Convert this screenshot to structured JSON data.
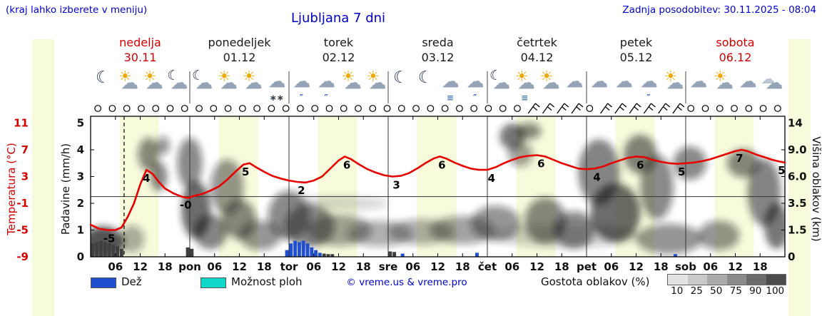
{
  "header": {
    "hint": "(kraj lahko izberete v meniju)",
    "title": "Ljubljana 7 dni",
    "last_update": "Zadnja posodobitev: 30.11.2025 - 08:04"
  },
  "days": [
    {
      "name": "nedelja",
      "date": "30.11",
      "highlight": true
    },
    {
      "name": "ponedeljek",
      "date": "01.12",
      "highlight": false
    },
    {
      "name": "torek",
      "date": "02.12",
      "highlight": false
    },
    {
      "name": "sreda",
      "date": "03.12",
      "highlight": false
    },
    {
      "name": "četrtek",
      "date": "04.12",
      "highlight": false
    },
    {
      "name": "petek",
      "date": "05.12",
      "highlight": false
    },
    {
      "name": "sobota",
      "date": "06.12",
      "highlight": true
    }
  ],
  "axes": {
    "temperature_label": "Temperatura (°C)",
    "temperature_ticks": [
      "11",
      "7",
      "3",
      "-1",
      "-5",
      "-9"
    ],
    "precip_label": "Padavine (mm/h)",
    "precip_ticks": [
      "5",
      "4",
      "3",
      "2",
      "1",
      "0"
    ],
    "cloud_label": "Višina oblakov (km)",
    "cloud_ticks": [
      "14",
      "9.0",
      "6.0",
      "3.5",
      "1.5",
      "0"
    ]
  },
  "legend": {
    "rain_label": "Dež",
    "shower_label": "Možnost ploh",
    "copyright": "© vreme.us & vreme.pro",
    "cloud_density_label": "Gostota oblakov (%)",
    "scale_values": [
      "10",
      "25",
      "50",
      "75",
      "90",
      "100"
    ],
    "scale_colors": [
      "#e2e2e2",
      "#c9c9c9",
      "#ababab",
      "#8b8b8b",
      "#6b6b6b",
      "#4c4c4c"
    ]
  },
  "colors": {
    "accent_blue": "#0000cc",
    "accent_red": "#d40000",
    "temp_line": "#e80000",
    "rain": "#2050d0",
    "snow_bar": "#3f3f3f",
    "shower": "#10d8c8",
    "day_band": "#f8fadc"
  },
  "chart_data": {
    "type": "line",
    "title": "Ljubljana 7 dni meteogram",
    "x_unit": "hours from 30.11 00:00",
    "x_hours_range": [
      0,
      168
    ],
    "now_line_hour": 8.1,
    "day_band_start": 7,
    "day_band_end": 16.5,
    "temperature_points": [
      [
        0,
        -4.2
      ],
      [
        2,
        -4.8
      ],
      [
        4,
        -5
      ],
      [
        6,
        -5
      ],
      [
        7.5,
        -4.6
      ],
      [
        9,
        -3
      ],
      [
        10.5,
        -1
      ],
      [
        12,
        1.8
      ],
      [
        13.5,
        4
      ],
      [
        15,
        3.4
      ],
      [
        16.5,
        2.2
      ],
      [
        18,
        1.2
      ],
      [
        20,
        0.5
      ],
      [
        22,
        0
      ],
      [
        23.5,
        -0.2
      ],
      [
        25,
        0.1
      ],
      [
        27,
        0.4
      ],
      [
        29,
        0.9
      ],
      [
        31,
        1.5
      ],
      [
        33,
        2.5
      ],
      [
        35,
        3.7
      ],
      [
        37,
        4.8
      ],
      [
        38.5,
        5
      ],
      [
        40,
        4.4
      ],
      [
        42,
        3.7
      ],
      [
        44,
        3.1
      ],
      [
        46,
        2.7
      ],
      [
        48,
        2.4
      ],
      [
        50,
        2.2
      ],
      [
        52,
        2.1
      ],
      [
        54,
        2.4
      ],
      [
        56,
        3
      ],
      [
        58,
        4.2
      ],
      [
        60,
        5.4
      ],
      [
        61.5,
        6
      ],
      [
        63,
        5.6
      ],
      [
        65,
        4.8
      ],
      [
        67,
        4.1
      ],
      [
        69,
        3.6
      ],
      [
        71,
        3.2
      ],
      [
        73,
        3
      ],
      [
        75,
        3.1
      ],
      [
        77,
        3.5
      ],
      [
        79,
        4.2
      ],
      [
        81,
        5
      ],
      [
        83,
        5.7
      ],
      [
        84.5,
        6
      ],
      [
        86,
        5.7
      ],
      [
        88,
        5.1
      ],
      [
        90,
        4.6
      ],
      [
        92,
        4.2
      ],
      [
        94,
        4
      ],
      [
        96,
        4
      ],
      [
        98,
        4.4
      ],
      [
        100,
        5
      ],
      [
        102,
        5.5
      ],
      [
        104,
        5.9
      ],
      [
        106,
        6.1
      ],
      [
        108,
        6.2
      ],
      [
        110,
        6
      ],
      [
        112,
        5.5
      ],
      [
        114,
        5
      ],
      [
        116,
        4.6
      ],
      [
        118,
        4.2
      ],
      [
        120,
        4.1
      ],
      [
        122,
        4.2
      ],
      [
        124,
        4.5
      ],
      [
        126,
        5
      ],
      [
        128,
        5.4
      ],
      [
        130,
        5.8
      ],
      [
        132,
        6
      ],
      [
        134,
        5.9
      ],
      [
        136,
        5.5
      ],
      [
        138,
        5.2
      ],
      [
        140,
        5
      ],
      [
        142,
        4.9
      ],
      [
        144,
        5
      ],
      [
        146,
        5.1
      ],
      [
        148,
        5.3
      ],
      [
        150,
        5.6
      ],
      [
        152,
        6
      ],
      [
        154,
        6.4
      ],
      [
        156,
        6.8
      ],
      [
        157.5,
        7
      ],
      [
        159,
        6.8
      ],
      [
        161,
        6.3
      ],
      [
        163,
        5.9
      ],
      [
        165,
        5.5
      ],
      [
        167,
        5.2
      ],
      [
        168,
        5.1
      ]
    ],
    "temperature_labels": [
      {
        "h": 4.5,
        "v": -5,
        "text": "-5"
      },
      {
        "h": 13.5,
        "v": 4,
        "text": "4"
      },
      {
        "h": 23,
        "v": 0,
        "text": "-0"
      },
      {
        "h": 37.5,
        "v": 5,
        "text": "5"
      },
      {
        "h": 51,
        "v": 2.2,
        "text": "2"
      },
      {
        "h": 62,
        "v": 6,
        "text": "6"
      },
      {
        "h": 74,
        "v": 3,
        "text": "3"
      },
      {
        "h": 85,
        "v": 6,
        "text": "6"
      },
      {
        "h": 97,
        "v": 4,
        "text": "4"
      },
      {
        "h": 109,
        "v": 6.2,
        "text": "6"
      },
      {
        "h": 122.5,
        "v": 4.2,
        "text": "4"
      },
      {
        "h": 133,
        "v": 6,
        "text": "6"
      },
      {
        "h": 143,
        "v": 5,
        "text": "5"
      },
      {
        "h": 157,
        "v": 7,
        "text": "7"
      },
      {
        "h": 167.2,
        "v": 5.2,
        "text": "5"
      }
    ],
    "x_ticks": [
      {
        "h": 6,
        "t": "06"
      },
      {
        "h": 12,
        "t": "12"
      },
      {
        "h": 18,
        "t": "18"
      },
      {
        "h": 24,
        "t": "pon"
      },
      {
        "h": 30,
        "t": "06"
      },
      {
        "h": 36,
        "t": "12"
      },
      {
        "h": 42,
        "t": "18"
      },
      {
        "h": 48,
        "t": "tor"
      },
      {
        "h": 54,
        "t": "06"
      },
      {
        "h": 60,
        "t": "12"
      },
      {
        "h": 66,
        "t": "18"
      },
      {
        "h": 72,
        "t": "sre"
      },
      {
        "h": 78,
        "t": "06"
      },
      {
        "h": 84,
        "t": "12"
      },
      {
        "h": 90,
        "t": "18"
      },
      {
        "h": 96,
        "t": "čet"
      },
      {
        "h": 102,
        "t": "06"
      },
      {
        "h": 108,
        "t": "12"
      },
      {
        "h": 114,
        "t": "18"
      },
      {
        "h": 120,
        "t": "pet"
      },
      {
        "h": 126,
        "t": "06"
      },
      {
        "h": 132,
        "t": "12"
      },
      {
        "h": 138,
        "t": "18"
      },
      {
        "h": 144,
        "t": "sob"
      },
      {
        "h": 150,
        "t": "06"
      },
      {
        "h": 156,
        "t": "12"
      },
      {
        "h": 162,
        "t": "18"
      }
    ],
    "precip_bars": [
      {
        "h": 0,
        "mm": 0.5,
        "type": "snow"
      },
      {
        "h": 1,
        "mm": 0.55,
        "type": "snow"
      },
      {
        "h": 2,
        "mm": 0.6,
        "type": "snow"
      },
      {
        "h": 3,
        "mm": 0.55,
        "type": "snow"
      },
      {
        "h": 4,
        "mm": 0.5,
        "type": "snow"
      },
      {
        "h": 5,
        "mm": 0.45,
        "type": "snow"
      },
      {
        "h": 6,
        "mm": 0.4,
        "type": "snow"
      },
      {
        "h": 7,
        "mm": 0.3,
        "type": "snow"
      },
      {
        "h": 23,
        "mm": 0.35,
        "type": "snow"
      },
      {
        "h": 24,
        "mm": 0.3,
        "type": "snow"
      },
      {
        "h": 47,
        "mm": 0.25,
        "type": "rain"
      },
      {
        "h": 48,
        "mm": 0.5,
        "type": "rain"
      },
      {
        "h": 49,
        "mm": 0.6,
        "type": "rain"
      },
      {
        "h": 50,
        "mm": 0.55,
        "type": "rain"
      },
      {
        "h": 51,
        "mm": 0.6,
        "type": "rain"
      },
      {
        "h": 52,
        "mm": 0.5,
        "type": "rain"
      },
      {
        "h": 53,
        "mm": 0.35,
        "type": "rain"
      },
      {
        "h": 54,
        "mm": 0.25,
        "type": "rain"
      },
      {
        "h": 55,
        "mm": 0.15,
        "type": "rain"
      },
      {
        "h": 56,
        "mm": 0.12,
        "type": "snow"
      },
      {
        "h": 57,
        "mm": 0.1,
        "type": "snow"
      },
      {
        "h": 58,
        "mm": 0.1,
        "type": "snow"
      },
      {
        "h": 72,
        "mm": 0.2,
        "type": "snow"
      },
      {
        "h": 73,
        "mm": 0.18,
        "type": "snow"
      },
      {
        "h": 75,
        "mm": 0.12,
        "type": "rain"
      },
      {
        "h": 93,
        "mm": 0.15,
        "type": "rain"
      },
      {
        "h": 141,
        "mm": 0.1,
        "type": "rain"
      }
    ],
    "cloud_axis_km": [
      0,
      1.5,
      3.5,
      6,
      9,
      14
    ],
    "clouds": [
      [
        3,
        0.8,
        5,
        1.1,
        0.75
      ],
      [
        10,
        1,
        3,
        0.8,
        0.35
      ],
      [
        14,
        8.5,
        2.5,
        2.2,
        0.5
      ],
      [
        16.5,
        6,
        2,
        1.5,
        0.55
      ],
      [
        17.5,
        9.8,
        1.6,
        1.5,
        0.45
      ],
      [
        24,
        7.5,
        3,
        3,
        0.5
      ],
      [
        25.5,
        3,
        3.5,
        2.2,
        0.65
      ],
      [
        29,
        1.4,
        4,
        1.1,
        0.55
      ],
      [
        33,
        5,
        4,
        2.6,
        0.45
      ],
      [
        36,
        2.3,
        4,
        1.4,
        0.5
      ],
      [
        41,
        1.2,
        5,
        0.9,
        0.45
      ],
      [
        48,
        2.6,
        5,
        1.8,
        0.5
      ],
      [
        53,
        1.8,
        6,
        1.4,
        0.5
      ],
      [
        60,
        1.5,
        8,
        1,
        0.4
      ],
      [
        70,
        1.3,
        8,
        0.8,
        0.35
      ],
      [
        80,
        1.4,
        8,
        0.8,
        0.35
      ],
      [
        90,
        1.5,
        8,
        0.9,
        0.4
      ],
      [
        98,
        2,
        6,
        1.2,
        0.45
      ],
      [
        102,
        11.5,
        3,
        2.4,
        0.6
      ],
      [
        106,
        12.5,
        3,
        1.6,
        0.5
      ],
      [
        104,
        8.5,
        3,
        1.6,
        0.4
      ],
      [
        110,
        2.2,
        5,
        1.6,
        0.5
      ],
      [
        117,
        1.5,
        5,
        1.2,
        0.5
      ],
      [
        123,
        6.5,
        5,
        3.5,
        0.55
      ],
      [
        127,
        2.8,
        6,
        2.2,
        0.65
      ],
      [
        133,
        8.5,
        4,
        2.6,
        0.55
      ],
      [
        137,
        5,
        4,
        3,
        0.5
      ],
      [
        140,
        1,
        8,
        0.9,
        0.45
      ],
      [
        145,
        7.5,
        4,
        1.9,
        0.5
      ],
      [
        152,
        1.2,
        5,
        0.9,
        0.45
      ],
      [
        158,
        7.5,
        4,
        1.6,
        0.5
      ],
      [
        163,
        4.5,
        4,
        3,
        0.55
      ],
      [
        166,
        1.8,
        3,
        1.5,
        0.6
      ],
      [
        60,
        3.5,
        12,
        0.6,
        0.18
      ],
      [
        115,
        1.2,
        18,
        0.7,
        0.22
      ]
    ],
    "wind": [
      "o",
      "o",
      "o",
      "o",
      "o",
      "o",
      "o",
      "o",
      "o",
      "o",
      "o",
      "o",
      "o",
      "o",
      "o",
      "o",
      "o",
      "o",
      "o",
      "o",
      "o",
      "o",
      "o",
      "o",
      "o",
      "o",
      "o",
      "o",
      "o",
      "o",
      "b",
      "b",
      "b",
      "b",
      "o",
      "b",
      "b",
      "b",
      "b",
      "b",
      "b",
      "o",
      "o",
      "o",
      "o",
      "o",
      "o",
      "o"
    ],
    "icons": [
      {
        "t": "moon"
      },
      {
        "t": "sun-cloud"
      },
      {
        "t": "sun-cloud"
      },
      {
        "t": "moon-cloud"
      },
      {
        "t": "moon-cloud"
      },
      {
        "t": "sun-cloud"
      },
      {
        "t": "sun-cloud"
      },
      {
        "t": "cloud",
        "sub": "snow"
      },
      {
        "t": "cloud",
        "sub": "rain"
      },
      {
        "t": "cloud",
        "sub": "rain"
      },
      {
        "t": "sun-cloud"
      },
      {
        "t": "sun-cloud"
      },
      {
        "t": "moon"
      },
      {
        "t": "moon"
      },
      {
        "t": "cloud",
        "sub": "fog"
      },
      {
        "t": "cloud",
        "sub": "rain"
      },
      {
        "t": "moon-cloud"
      },
      {
        "t": "sun-cloud",
        "sub": "fog"
      },
      {
        "t": "sun-cloud"
      },
      {
        "t": "cloud"
      },
      {
        "t": "cloud"
      },
      {
        "t": "cloud"
      },
      {
        "t": "cloud",
        "sub": "rain"
      },
      {
        "t": "sun-cloud"
      },
      {
        "t": "cloud"
      },
      {
        "t": "sun-cloud"
      },
      {
        "t": "cloud"
      },
      {
        "t": "clouds"
      }
    ]
  }
}
